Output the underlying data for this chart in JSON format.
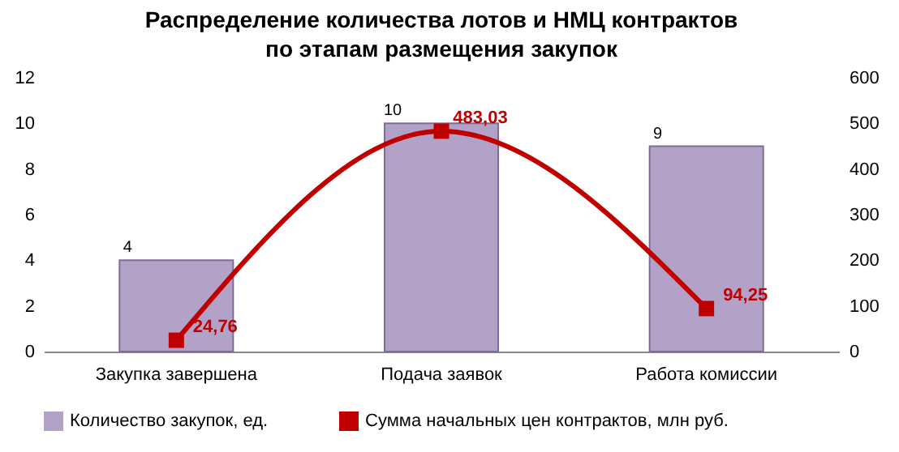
{
  "chart_data": {
    "type": "bar",
    "title": "Распределение количества лотов и НМЦ контрактов по этапам размещения закупок",
    "categories": [
      "Закупка завершена",
      "Подача заявок",
      "Работа комиссии"
    ],
    "series": [
      {
        "name": "Количество закупок, ед.",
        "color": "#b3a2c7",
        "values": [
          4,
          10,
          9
        ],
        "value_labels": [
          "4",
          "10",
          "9"
        ]
      },
      {
        "name": "Сумма начальных цен контрактов, млн руб.",
        "type": "line",
        "axis": "y2",
        "color": "#c00000",
        "values": [
          24.76,
          483.03,
          94.25
        ],
        "value_labels": [
          "24,76",
          "483,03",
          "94,25"
        ],
        "marker": "square"
      }
    ],
    "ylim": [
      0,
      12
    ],
    "yticks": [
      0,
      2,
      4,
      6,
      8,
      10,
      12
    ],
    "y2lim": [
      0,
      600
    ],
    "y2ticks": [
      0,
      100,
      200,
      300,
      400,
      500,
      600
    ],
    "legend": "bottom"
  }
}
